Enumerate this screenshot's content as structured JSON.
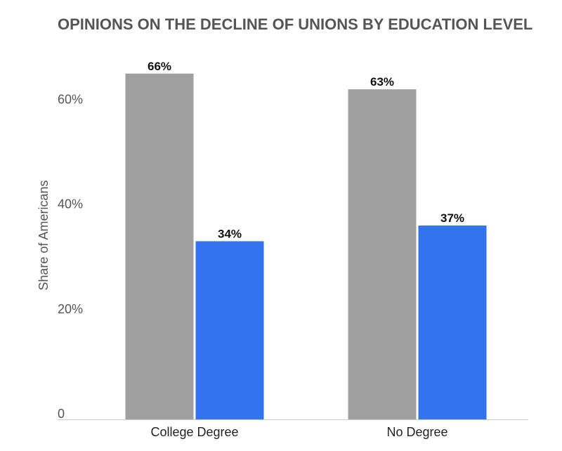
{
  "chart_data": {
    "type": "bar",
    "title": "OPINIONS ON THE DECLINE OF UNIONS BY EDUCATION LEVEL",
    "xlabel": "",
    "ylabel": "Share of Americans",
    "categories": [
      "College Degree",
      "No Degree"
    ],
    "series": [
      {
        "values": [
          66,
          63
        ],
        "color": "#a0a0a0"
      },
      {
        "values": [
          34,
          37
        ],
        "color": "#3174ee"
      }
    ],
    "ylim": [
      0,
      72
    ],
    "y_ticks": [
      0,
      20,
      40,
      60
    ],
    "y_tick_labels": [
      "0",
      "20%",
      "40%",
      "60%"
    ],
    "grid": false,
    "legend": "none",
    "data_label_suffix": "%"
  }
}
